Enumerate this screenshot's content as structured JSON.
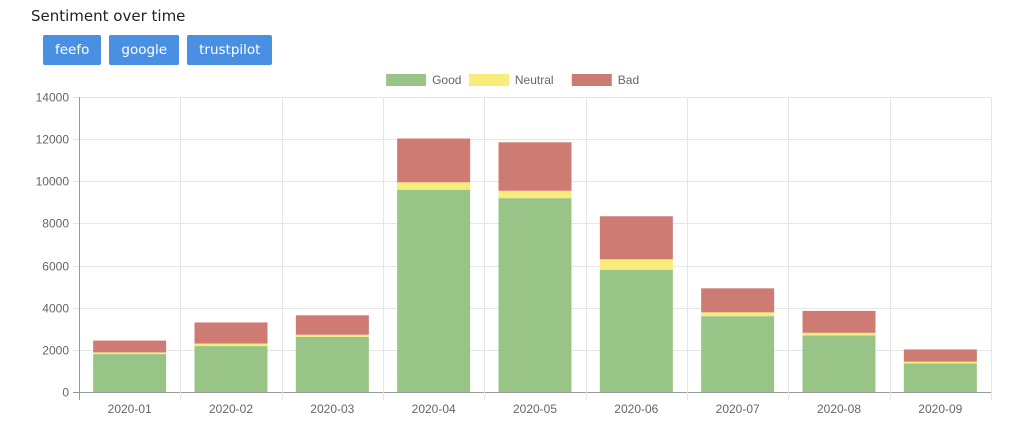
{
  "header": {
    "title": "Sentiment over time"
  },
  "buttons": [
    "feefo",
    "google",
    "trustpilot"
  ],
  "colors": {
    "good": "#98c487",
    "neutral": "#f8ed7a",
    "bad": "#cd7b73"
  },
  "chart_data": {
    "type": "bar",
    "stacked": true,
    "categories": [
      "2020-01",
      "2020-02",
      "2020-03",
      "2020-04",
      "2020-05",
      "2020-06",
      "2020-07",
      "2020-08",
      "2020-09"
    ],
    "series": [
      {
        "name": "Good",
        "values": [
          1800,
          2180,
          2620,
          9600,
          9200,
          5800,
          3600,
          2680,
          1360
        ]
      },
      {
        "name": "Neutral",
        "values": [
          80,
          120,
          100,
          350,
          350,
          500,
          180,
          130,
          80
        ]
      },
      {
        "name": "Bad",
        "values": [
          560,
          1000,
          920,
          2080,
          2300,
          2040,
          1140,
          1040,
          580
        ]
      }
    ],
    "ylim": [
      0,
      14000
    ],
    "yticks": [
      "0",
      "2000",
      "4000",
      "6000",
      "8000",
      "10000",
      "12000",
      "14000"
    ],
    "legend_position": "top",
    "grid": true
  }
}
